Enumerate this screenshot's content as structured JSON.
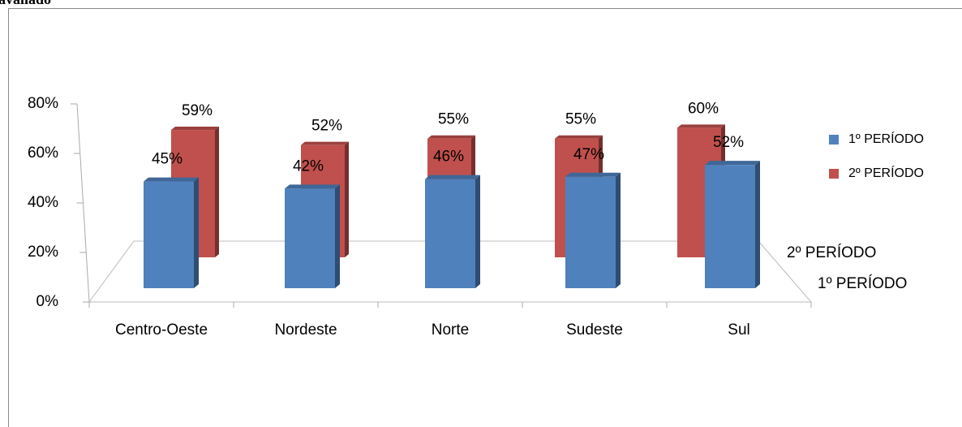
{
  "page_text": "avaliado",
  "chart_data": {
    "type": "bar3d",
    "categories": [
      "Centro-Oeste",
      "Nordeste",
      "Norte",
      "Sudeste",
      "Sul"
    ],
    "series": [
      {
        "name": "1º PERÍODO",
        "color": "#4f81bd",
        "values": [
          45,
          42,
          46,
          47,
          52
        ],
        "value_labels": [
          "45%",
          "42%",
          "46%",
          "47%",
          "52%"
        ]
      },
      {
        "name": "2º PERÍODO",
        "color": "#c0504d",
        "values": [
          59,
          52,
          55,
          55,
          60
        ],
        "value_labels": [
          "59%",
          "52%",
          "55%",
          "55%",
          "60%"
        ]
      }
    ],
    "ylim": [
      0,
      80
    ],
    "yticks": [
      {
        "value": 0,
        "label": "0%"
      },
      {
        "value": 20,
        "label": "20%"
      },
      {
        "value": 40,
        "label": "40%"
      },
      {
        "value": 60,
        "label": "60%"
      },
      {
        "value": 80,
        "label": "80%"
      }
    ],
    "legend": "right"
  }
}
